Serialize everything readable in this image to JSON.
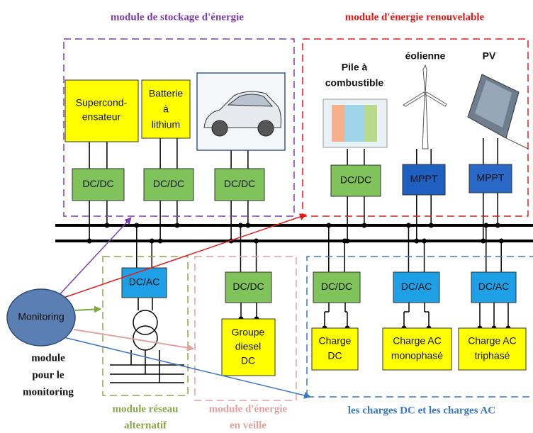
{
  "modules": {
    "storage": "module de stockage d'énergie",
    "renewable": "module d'énergie renouvelable",
    "grid": [
      "module réseau",
      "alternatif"
    ],
    "standby": [
      "module d'énergie",
      "en veille"
    ],
    "loads": "les charges DC et les charges AC",
    "monitoring": [
      "module",
      "pour le",
      "monitoring"
    ]
  },
  "sources": {
    "supercap": [
      "Supercond-",
      "ensateur"
    ],
    "battery": [
      "Batterie",
      "à",
      "lithium"
    ],
    "fuel_cell": [
      "Pile à",
      "combustible"
    ],
    "wind": "éolienne",
    "pv": "PV"
  },
  "converters_top": [
    "DC/DC",
    "DC/DC",
    "DC/DC",
    "DC/DC",
    "MPPT",
    "MPPT"
  ],
  "converters_bottom": [
    "DC/AC",
    "DC/DC",
    "DC/DC",
    "DC/AC",
    "DC/AC"
  ],
  "monitoring": "Monitoring",
  "diesel": [
    "Groupe",
    "diesel",
    "DC"
  ],
  "loads": [
    [
      "Charge",
      "DC"
    ],
    [
      "Charge AC",
      "monophasé"
    ],
    [
      "Charge AC",
      "triphasé"
    ]
  ]
}
